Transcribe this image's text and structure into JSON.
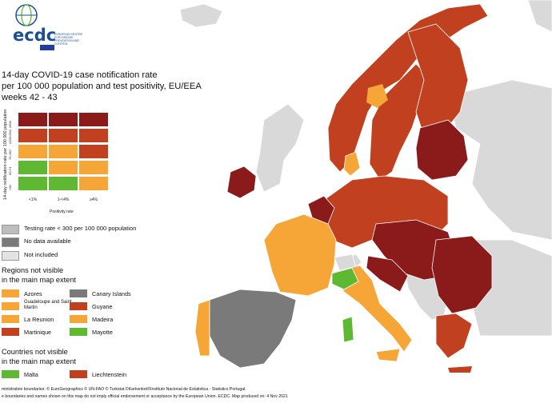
{
  "logo": {
    "text": "ecdc",
    "subtitle": "EUROPEAN CENTRE FOR DISEASE PREVENTION AND CONTROL"
  },
  "title": {
    "line1": "14-day COVID-19 case notification rate",
    "line2": "per 100 000 population and test positivity, EU/EEA",
    "line3": "weeks 42 - 43"
  },
  "matrix": {
    "y_axis_label": "14-day notification rate per 100 000 population",
    "y_ticks": [
      "≥500",
      "≥200<500",
      "75-200",
      "50-74",
      "<50"
    ],
    "x_ticks": [
      "<1%",
      "1-<4%",
      "≥4%"
    ],
    "x_axis_label": "Positivity rate",
    "colors": [
      [
        "#8b1a1a",
        "#8b1a1a",
        "#8b1a1a"
      ],
      [
        "#c1401f",
        "#c1401f",
        "#c1401f"
      ],
      [
        "#f5a636",
        "#f5a636",
        "#c1401f"
      ],
      [
        "#5fb832",
        "#f5a636",
        "#f5a636"
      ],
      [
        "#5fb832",
        "#5fb832",
        "#f5a636"
      ]
    ]
  },
  "legend": {
    "items": [
      {
        "label": "Testing rate < 300 per 100 000 population",
        "color": "#bdbdbd"
      },
      {
        "label": "No data available",
        "color": "#7a7a7a"
      },
      {
        "label": "Not included",
        "color": "#e3e3e3"
      }
    ]
  },
  "regions": {
    "heading1": "Regions not visible",
    "heading2": "in the main map extent",
    "left": [
      {
        "label": "Azores",
        "color": "#f5a636"
      },
      {
        "label": "Guadeloupe and Saint Martin",
        "color": "#f5a636"
      },
      {
        "label": "La Reunion",
        "color": "#f5a636"
      },
      {
        "label": "Martinique",
        "color": "#c1401f"
      }
    ],
    "right": [
      {
        "label": "Canary Islands",
        "color": "#7a7a7a"
      },
      {
        "label": "Guyane",
        "color": "#c1401f"
      },
      {
        "label": "Madeira",
        "color": "#f5a636"
      },
      {
        "label": "Mayotte",
        "color": "#5fb832"
      }
    ]
  },
  "countries": {
    "heading1": "Countries not visible",
    "heading2": "in the main map extent",
    "items": [
      {
        "label": "Malta",
        "color": "#5fb832"
      },
      {
        "label": "Liechtenstein",
        "color": "#c1401f"
      }
    ]
  },
  "footer": {
    "line1": "ministrative boundaries: © EuroGeographics © UN-FAO © Turkstat.©Kartverket©Instituto Nacional de Estatistica - Statistics Portugal.",
    "line2": "e boundaries and names shown on this map do not imply official endorsement or acceptance by the European Union. ECDC. Map produced on: 4 Nov 2021"
  },
  "colors": {
    "dark_red": "#8b1a1a",
    "red": "#c1401f",
    "orange": "#f5a636",
    "green": "#5fb832",
    "grey": "#7a7a7a",
    "light_grey": "#d9d9d9",
    "sea": "#ffffff"
  }
}
